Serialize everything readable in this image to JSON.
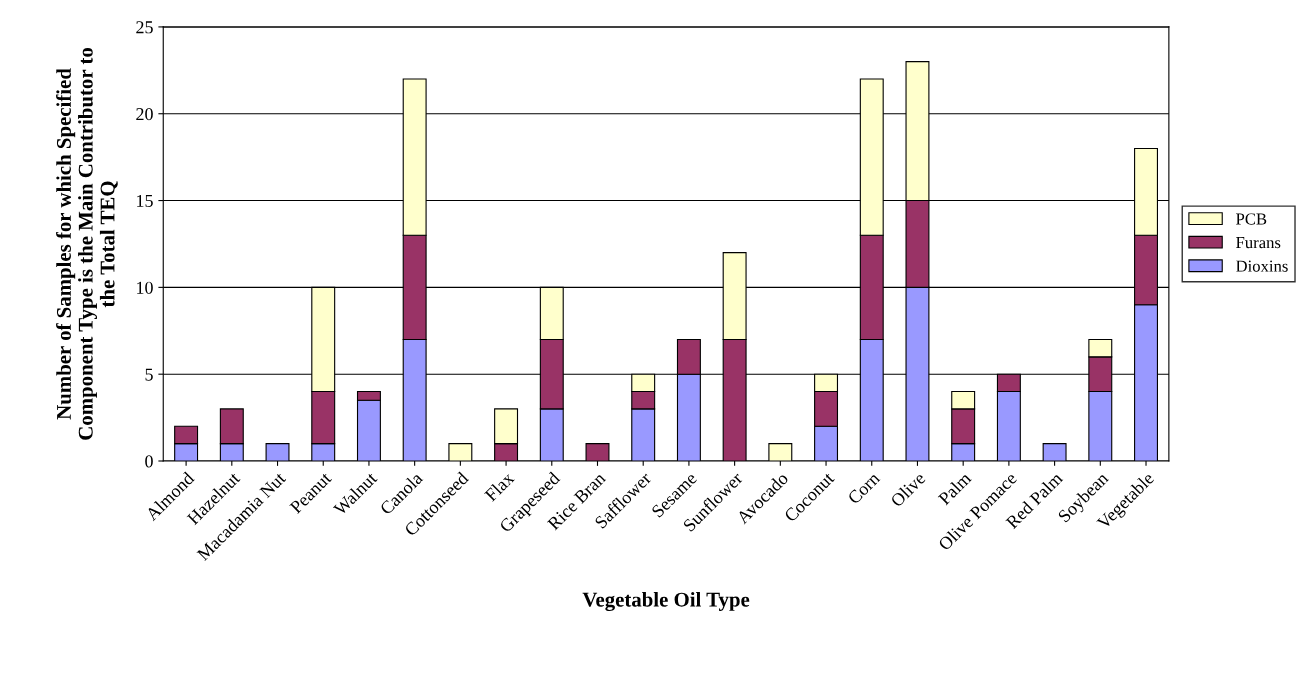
{
  "chart_data": {
    "type": "bar",
    "stacked": true,
    "xlabel": "Vegetable Oil Type",
    "ylabel": "Number of Samples for which Specified\nComponent Type is the Main Contributor to\nthe Total TEQ",
    "categories": [
      "Almond",
      "Hazelnut",
      "Macadamia Nut",
      "Peanut",
      "Walnut",
      "Canola",
      "Cottonseed",
      "Flax",
      "Grapeseed",
      "Rice Bran",
      "Safflower",
      "Sesame",
      "Sunflower",
      "Avocado",
      "Coconut",
      "Corn",
      "Olive",
      "Palm",
      "Olive Pomace",
      "Red Palm",
      "Soybean",
      "Vegetable"
    ],
    "series": [
      {
        "name": "Dioxins",
        "color": "#9999ff",
        "values": [
          1,
          1,
          1,
          1,
          3.5,
          7,
          0,
          0,
          3,
          0,
          3,
          5,
          0,
          0,
          2,
          7,
          10,
          1,
          4,
          1,
          4,
          9
        ]
      },
      {
        "name": "Furans",
        "color": "#993366",
        "values": [
          1,
          2,
          0,
          3,
          0.5,
          6,
          0,
          1,
          4,
          1,
          1,
          2,
          7,
          0,
          2,
          6,
          5,
          2,
          1,
          0,
          2,
          4
        ]
      },
      {
        "name": "PCB",
        "color": "#ffffcc",
        "values": [
          0,
          0,
          0,
          6,
          0,
          9,
          1,
          2,
          3,
          0,
          1,
          0,
          5,
          1,
          1,
          9,
          8,
          1,
          0,
          0,
          1,
          5
        ]
      }
    ],
    "ylim": [
      0,
      25
    ],
    "yticks": [
      0,
      5,
      10,
      15,
      20,
      25
    ],
    "grid": "y",
    "legend": "right"
  }
}
